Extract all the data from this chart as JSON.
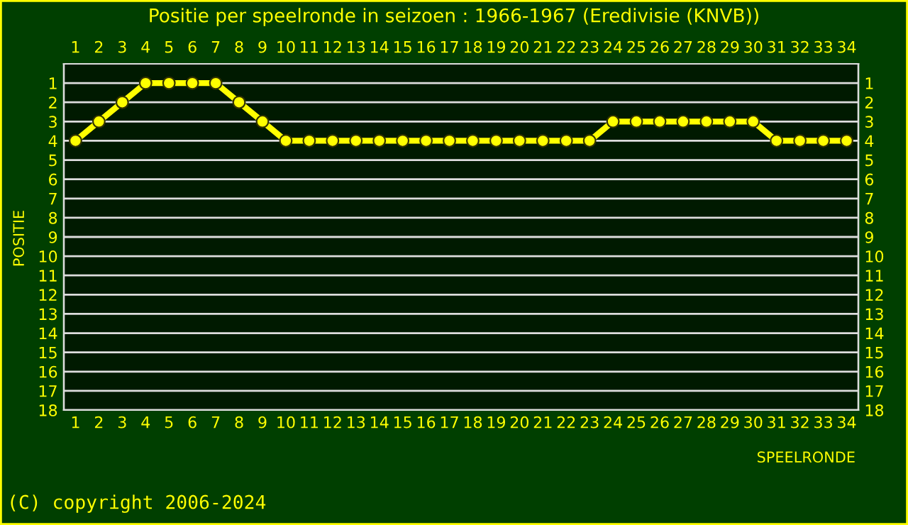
{
  "chart_data": {
    "type": "line",
    "title": "Positie per speelronde in seizoen : 1966-1967 (Eredivisie (KNVB))",
    "xlabel": "SPEELRONDE",
    "ylabel": "POSITIE",
    "x": [
      1,
      2,
      3,
      4,
      5,
      6,
      7,
      8,
      9,
      10,
      11,
      12,
      13,
      14,
      15,
      16,
      17,
      18,
      19,
      20,
      21,
      22,
      23,
      24,
      25,
      26,
      27,
      28,
      29,
      30,
      31,
      32,
      33,
      34
    ],
    "series": [
      {
        "color": "#ffff00",
        "values": [
          4,
          3,
          2,
          1,
          1,
          1,
          1,
          2,
          3,
          4,
          4,
          4,
          4,
          4,
          4,
          4,
          4,
          4,
          4,
          4,
          4,
          4,
          4,
          3,
          3,
          3,
          3,
          3,
          3,
          3,
          4,
          4,
          4,
          4
        ]
      }
    ],
    "xlim": [
      0.5,
      34.5
    ],
    "xticks": [
      1,
      2,
      3,
      4,
      5,
      6,
      7,
      8,
      9,
      10,
      11,
      12,
      13,
      14,
      15,
      16,
      17,
      18,
      19,
      20,
      21,
      22,
      23,
      24,
      25,
      26,
      27,
      28,
      29,
      30,
      31,
      32,
      33,
      34
    ],
    "x2lim": [
      0.5,
      34.5
    ],
    "x2ticks": [
      1,
      2,
      3,
      4,
      5,
      6,
      7,
      8,
      9,
      10,
      11,
      12,
      13,
      14,
      15,
      16,
      17,
      18,
      19,
      20,
      21,
      22,
      23,
      24,
      25,
      26,
      27,
      28,
      29,
      30,
      31,
      32,
      33,
      34
    ],
    "ylim": [
      18,
      0
    ],
    "yticks": [
      1,
      2,
      3,
      4,
      5,
      6,
      7,
      8,
      9,
      10,
      11,
      12,
      13,
      14,
      15,
      16,
      17,
      18
    ],
    "y2lim": [
      18,
      0
    ],
    "y2ticks": [
      1,
      2,
      3,
      4,
      5,
      6,
      7,
      8,
      9,
      10,
      11,
      12,
      13,
      14,
      15,
      16,
      17,
      18
    ],
    "grid": "y",
    "marker": "circle",
    "line_style": "solid",
    "annotations": [
      "(C) copyright 2006-2024"
    ]
  }
}
